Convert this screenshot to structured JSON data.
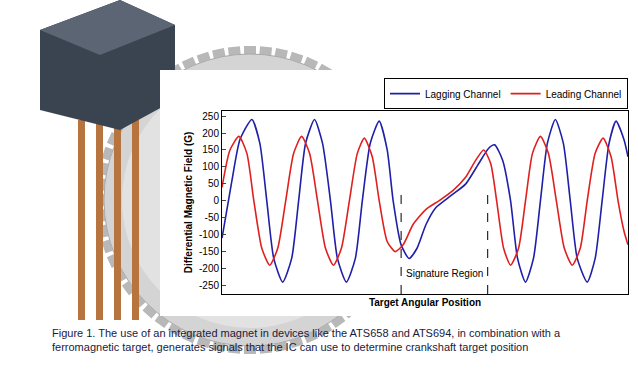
{
  "chart_data": {
    "type": "line",
    "x_label": "Target Angular Position",
    "y_label": "Differential Magnetic Field (G)",
    "xlim": [
      0,
      408
    ],
    "ylim": [
      -275,
      265
    ],
    "yticks": [
      -250,
      -200,
      -150,
      -100,
      -50,
      0,
      50,
      100,
      150,
      200,
      250
    ],
    "tick_labels": "y",
    "grid": false,
    "legend": "upper right",
    "series": [
      {
        "name": "Lagging Channel",
        "color": "#1f1fa8",
        "x": [
          0,
          10,
          18,
          30,
          38,
          45,
          52,
          61,
          70,
          77,
          84,
          93,
          101,
          109,
          116,
          125,
          134,
          141,
          149,
          158,
          166,
          172,
          180,
          188,
          196,
          205,
          215,
          230,
          245,
          258,
          268,
          274,
          282,
          290,
          297,
          305,
          313,
          320,
          327,
          335,
          343,
          350,
          357,
          367,
          375,
          382,
          389,
          396,
          404,
          408
        ],
        "values": [
          -110,
          60,
          180,
          240,
          170,
          0,
          -170,
          -240,
          -170,
          0,
          170,
          240,
          170,
          0,
          -170,
          -240,
          -170,
          0,
          170,
          235,
          150,
          0,
          -130,
          -170,
          -140,
          -70,
          -20,
          15,
          50,
          110,
          155,
          165,
          120,
          0,
          -170,
          -240,
          -170,
          0,
          170,
          240,
          170,
          0,
          -170,
          -240,
          -170,
          0,
          170,
          235,
          180,
          130
        ]
      },
      {
        "name": "Leading Channel",
        "color": "#e0201f",
        "x": [
          0,
          8,
          17,
          25,
          32,
          40,
          48,
          56,
          64,
          72,
          80,
          88,
          96,
          104,
          112,
          120,
          128,
          136,
          143,
          151,
          158,
          166,
          174,
          182,
          192,
          205,
          218,
          232,
          245,
          255,
          263,
          270,
          276,
          283,
          290,
          298,
          305,
          312,
          320,
          328,
          336,
          344,
          352,
          360,
          367,
          375,
          383,
          391,
          398,
          404,
          408
        ],
        "values": [
          40,
          150,
          190,
          140,
          0,
          -140,
          -190,
          -140,
          0,
          140,
          190,
          140,
          0,
          -140,
          -190,
          -140,
          0,
          140,
          185,
          130,
          0,
          -120,
          -150,
          -130,
          -70,
          -25,
          0,
          30,
          70,
          120,
          150,
          110,
          0,
          -140,
          -190,
          -140,
          0,
          140,
          190,
          140,
          0,
          -140,
          -190,
          -140,
          0,
          140,
          185,
          130,
          0,
          -90,
          -130
        ]
      }
    ],
    "annotations": [
      {
        "text": "Signature Region",
        "x_start": 180,
        "x_end": 267,
        "y": -215
      }
    ]
  },
  "caption": "Figure 1. The use of an integrated magnet in devices like the ATS658 and ATS694, in combination with a ferromagnetic target, generates signals that the IC can use to determine crankshaft target position"
}
